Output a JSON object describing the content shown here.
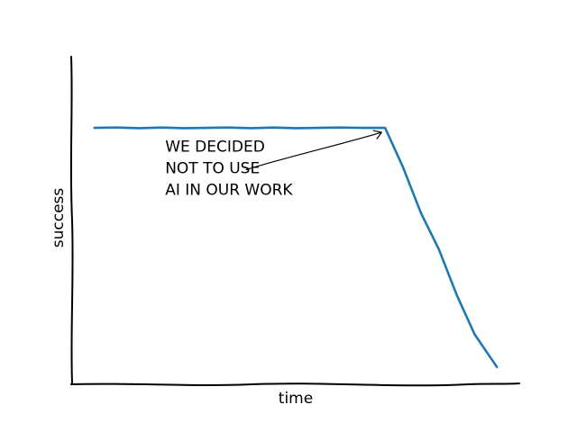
{
  "chart_data": {
    "type": "line",
    "title": "",
    "xlabel": "time",
    "ylabel": "success",
    "xlim": [
      0,
      100
    ],
    "ylim": [
      0,
      100
    ],
    "grid": false,
    "legend": "none",
    "series": [
      {
        "color": "#1f77b4",
        "points": [
          {
            "x": 5,
            "y": 78
          },
          {
            "x": 10,
            "y": 78.1
          },
          {
            "x": 15,
            "y": 77.9
          },
          {
            "x": 20,
            "y": 78.1
          },
          {
            "x": 25,
            "y": 77.9
          },
          {
            "x": 30,
            "y": 78
          },
          {
            "x": 35,
            "y": 78.1
          },
          {
            "x": 40,
            "y": 77.9
          },
          {
            "x": 45,
            "y": 78.1
          },
          {
            "x": 50,
            "y": 77.9
          },
          {
            "x": 55,
            "y": 78
          },
          {
            "x": 60,
            "y": 78.1
          },
          {
            "x": 65,
            "y": 78
          },
          {
            "x": 70,
            "y": 78
          },
          {
            "x": 74,
            "y": 66
          },
          {
            "x": 78,
            "y": 52
          },
          {
            "x": 82,
            "y": 41
          },
          {
            "x": 86,
            "y": 27
          },
          {
            "x": 90,
            "y": 15
          },
          {
            "x": 95,
            "y": 5
          }
        ]
      }
    ],
    "annotations": [
      {
        "lines": [
          "WE DECIDED",
          "NOT TO USE",
          "AI IN OUR WORK"
        ],
        "target": {
          "x": 70,
          "y": 78
        },
        "text_anchor": {
          "x": 45,
          "y": 68
        }
      }
    ]
  }
}
